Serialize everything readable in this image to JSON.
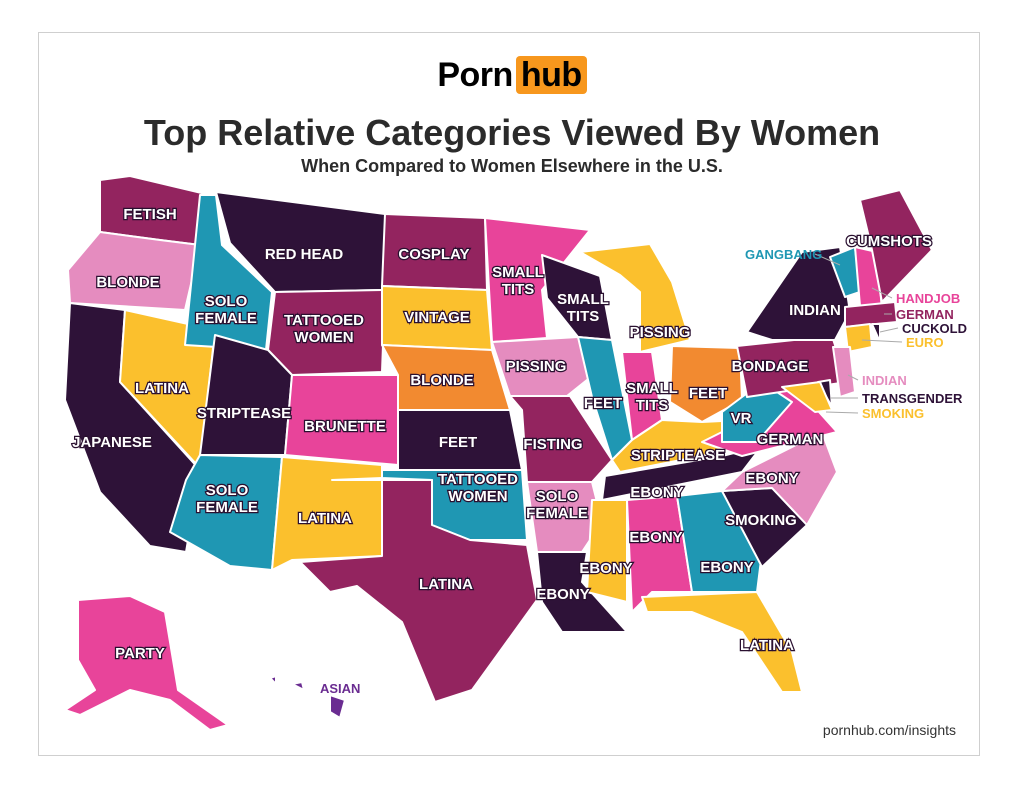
{
  "logo": {
    "part1": "Porn",
    "part2": "hub"
  },
  "title": "Top Relative Categories Viewed By Women",
  "subtitle": "When Compared to Women Elsewhere in the U.S.",
  "footer": "pornhub.com/insights",
  "colors": {
    "dark": "#2e1238",
    "plum": "#93245f",
    "pink": "#e8449a",
    "lightpink": "#e58cbf",
    "teal": "#1f97b3",
    "yellow": "#fbc02d",
    "orange": "#f28a30",
    "violet": "#6a2c91"
  },
  "regions": [
    {
      "category": "FETISH",
      "color": "#93245f"
    },
    {
      "category": "BLONDE",
      "color": "#e58cbf"
    },
    {
      "category": "JAPANESE",
      "color": "#2e1238"
    },
    {
      "category": "LATINA",
      "color": "#fbc02d"
    },
    {
      "category": "SOLO FEMALE",
      "color": "#1f97b3"
    },
    {
      "category": "RED HEAD",
      "color": "#2e1238"
    },
    {
      "category": "TATTOOED WOMEN",
      "color": "#93245f"
    },
    {
      "category": "STRIPTEASE",
      "color": "#2e1238"
    },
    {
      "category": "BRUNETTE",
      "color": "#e8449a"
    },
    {
      "category": "SOLO FEMALE",
      "color": "#1f97b3"
    },
    {
      "category": "LATINA",
      "color": "#fbc02d"
    },
    {
      "category": "COSPLAY",
      "color": "#93245f"
    },
    {
      "category": "VINTAGE",
      "color": "#fbc02d"
    },
    {
      "category": "BLONDE",
      "color": "#f28a30"
    },
    {
      "category": "FEET",
      "color": "#2e1238"
    },
    {
      "category": "TATTOOED WOMEN",
      "color": "#1f97b3"
    },
    {
      "category": "LATINA",
      "color": "#93245f"
    },
    {
      "category": "SMALL TITS",
      "color": "#e8449a"
    },
    {
      "category": "PISSING",
      "color": "#e58cbf"
    },
    {
      "category": "FISTING",
      "color": "#93245f"
    },
    {
      "category": "SOLO FEMALE",
      "color": "#e58cbf"
    },
    {
      "category": "EBONY",
      "color": "#2e1238"
    },
    {
      "category": "SMALL TITS",
      "color": "#2e1238"
    },
    {
      "category": "FEET",
      "color": "#1f97b3"
    },
    {
      "category": "PISSING",
      "color": "#fbc02d"
    },
    {
      "category": "SMALL TITS",
      "color": "#e8449a"
    },
    {
      "category": "FEET",
      "color": "#f28a30"
    },
    {
      "category": "STRIPTEASE",
      "color": "#fbc02d"
    },
    {
      "category": "EBONY",
      "color": "#2e1238"
    },
    {
      "category": "EBONY",
      "color": "#fbc02d"
    },
    {
      "category": "EBONY",
      "color": "#e8449a"
    },
    {
      "category": "EBONY",
      "color": "#1f97b3"
    },
    {
      "category": "LATINA",
      "color": "#fbc02d"
    },
    {
      "category": "SMOKING",
      "color": "#2e1238"
    },
    {
      "category": "EBONY",
      "color": "#e58cbf"
    },
    {
      "category": "GERMAN",
      "color": "#e8449a"
    },
    {
      "category": "VR",
      "color": "#1f97b3"
    },
    {
      "category": "BONDAGE",
      "color": "#93245f"
    },
    {
      "category": "INDIAN",
      "color": "#2e1238"
    },
    {
      "category": "GANGBANG",
      "color": "#1f97b3"
    },
    {
      "category": "HANDJOB",
      "color": "#e8449a"
    },
    {
      "category": "CUMSHOTS",
      "color": "#93245f"
    },
    {
      "category": "GERMAN",
      "color": "#93245f"
    },
    {
      "category": "EURO",
      "color": "#fbc02d"
    },
    {
      "category": "CUCKOLD",
      "color": "#2e1238"
    },
    {
      "category": "INDIAN",
      "color": "#e58cbf"
    },
    {
      "category": "TRANSGENDER",
      "color": "#2e1238"
    },
    {
      "category": "SMOKING",
      "color": "#fbc02d"
    },
    {
      "category": "PARTY",
      "color": "#e8449a"
    },
    {
      "category": "ASIAN",
      "color": "#6a2c91"
    }
  ]
}
